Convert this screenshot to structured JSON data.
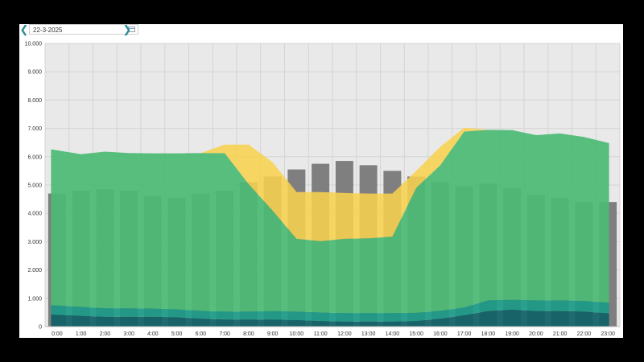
{
  "date_picker": {
    "value": "22-3-2025",
    "prev_icon": "chevron-left-icon",
    "next_icon": "chevron-right-icon",
    "calendar_icon": "calendar-icon"
  },
  "colors": {
    "plot_background": "#e9e9e9",
    "gridline": "#d4d4d4",
    "bars": "#7f7f7f",
    "bars_overlay": "#4db06a",
    "yellow_area": "#f7d24f",
    "green_area": "#4cba74",
    "teal_area": "#1d9a88",
    "dark_teal_area": "#0f6166"
  },
  "chart_data": {
    "type": "area",
    "title": "",
    "xlabel": "",
    "ylabel": "",
    "x": [
      "0:00",
      "1:00",
      "2:00",
      "3:00",
      "4:00",
      "5:00",
      "6:00",
      "7:00",
      "8:00",
      "9:00",
      "10:00",
      "11:00",
      "12:00",
      "13:00",
      "14:00",
      "15:00",
      "16:00",
      "17:00",
      "18:00",
      "19:00",
      "20:00",
      "21:00",
      "22:00",
      "23:00"
    ],
    "y_ticks": [
      "0",
      "1.000",
      "2.000",
      "3.000",
      "4.000",
      "5.000",
      "6.000",
      "7.000",
      "8.000",
      "9.000",
      "10.000"
    ],
    "ylim": [
      0,
      10000
    ],
    "grid": true,
    "bars": [
      4700,
      4800,
      4850,
      4800,
      4600,
      4550,
      4700,
      4800,
      5100,
      5300,
      5550,
      5750,
      5850,
      5700,
      5500,
      5300,
      5100,
      4950,
      5050,
      4900,
      4650,
      4550,
      4400,
      4400
    ],
    "stacked_areas": [
      {
        "key": "dark_teal",
        "color_key": "dark_teal_area",
        "values": [
          430,
          380,
          350,
          350,
          350,
          330,
          280,
          250,
          250,
          250,
          230,
          200,
          180,
          180,
          180,
          200,
          280,
          400,
          550,
          600,
          550,
          550,
          530,
          470
        ]
      },
      {
        "key": "teal",
        "color_key": "teal_area",
        "values": [
          330,
          320,
          300,
          300,
          290,
          280,
          280,
          280,
          280,
          300,
          300,
          300,
          300,
          300,
          300,
          290,
          280,
          280,
          380,
          350,
          380,
          380,
          380,
          380
        ]
      },
      {
        "key": "green",
        "color_key": "green_area",
        "values": [
          5500,
          5390,
          5530,
          5480,
          5480,
          5510,
          5570,
          5600,
          4500,
          3550,
          2570,
          2520,
          2620,
          2640,
          2700,
          4410,
          5140,
          6210,
          6020,
          5990,
          5830,
          5890,
          5790,
          5630
        ]
      },
      {
        "key": "yellow",
        "color_key": "yellow_area",
        "values": [
          0,
          0,
          0,
          0,
          0,
          0,
          0,
          300,
          1400,
          1700,
          1650,
          1730,
          1620,
          1580,
          1520,
          600,
          650,
          130,
          0,
          0,
          0,
          0,
          0,
          0
        ]
      }
    ]
  }
}
